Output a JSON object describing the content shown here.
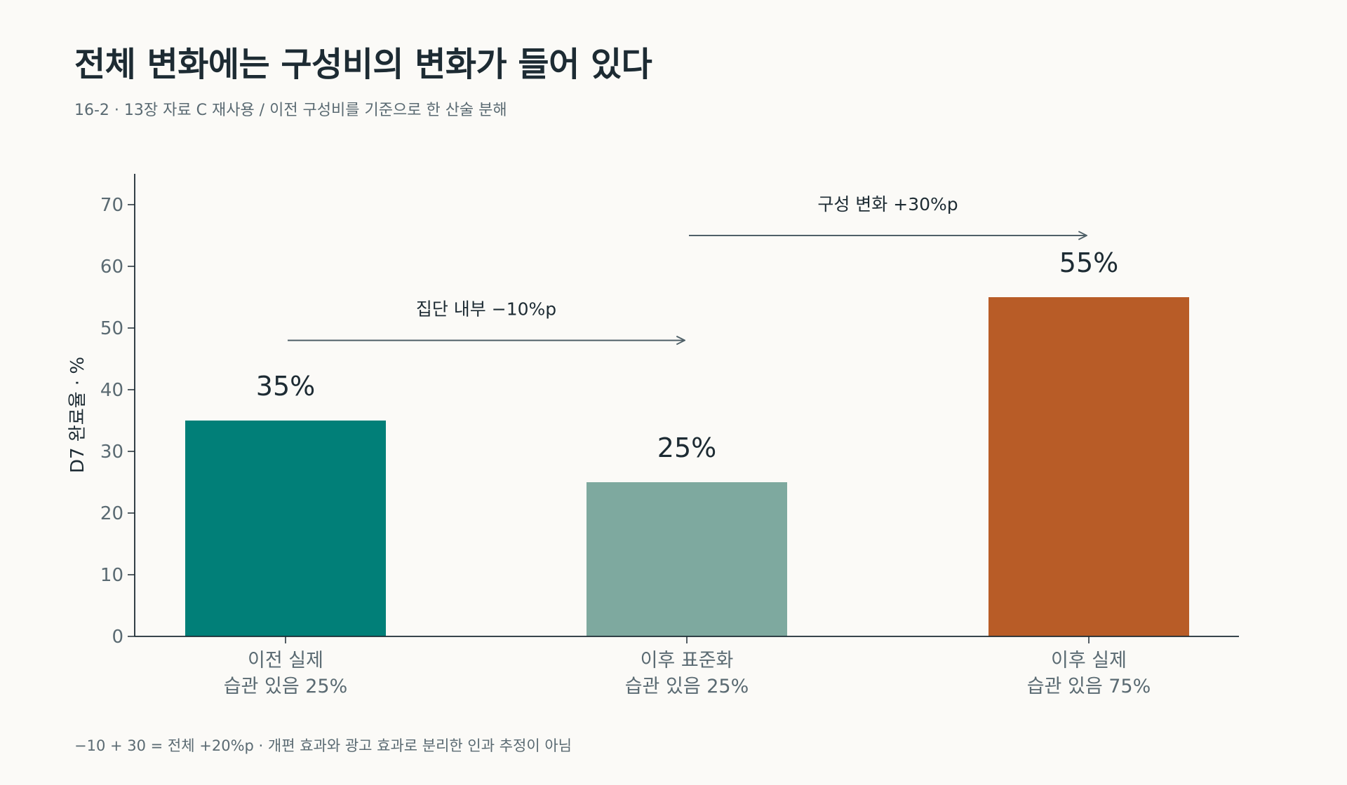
{
  "header": {
    "title": "전체 변화에는 구성비의 변화가 들어 있다",
    "subtitle": "16-2 · 13장 자료 C 재사용 / 이전 구성비를 기준으로 한 산술 분해"
  },
  "footnote": "−10 + 30 = 전체 +20%p · 개편 효과와 광고 효과로 분리한 인과 추정이 아님",
  "colors": {
    "axis": "#1d2b33",
    "tick": "#5a6a72",
    "arrow": "#4f6068",
    "background": "#fbfaf7"
  },
  "chart_data": {
    "type": "bar",
    "categories": [
      [
        "이전 실제",
        "습관 있음 25%"
      ],
      [
        "이후 표준화",
        "습관 있음 25%"
      ],
      [
        "이후 실제",
        "습관 있음 75%"
      ]
    ],
    "values": [
      35,
      25,
      55
    ],
    "value_labels": [
      "35%",
      "25%",
      "55%"
    ],
    "bar_colors": [
      "#017f78",
      "#7ea99f",
      "#b85c27"
    ],
    "ylabel": "D7 완료율 · %",
    "ylim": [
      0,
      75
    ],
    "yticks": [
      0,
      10,
      20,
      30,
      40,
      50,
      60,
      70
    ],
    "grid": false,
    "annotations": [
      {
        "text": "집단 내부 −10%p",
        "from_category": 0,
        "to_category": 1,
        "y": 48
      },
      {
        "text": "구성 변화 +30%p",
        "from_category": 1,
        "to_category": 2,
        "y": 65
      }
    ]
  }
}
